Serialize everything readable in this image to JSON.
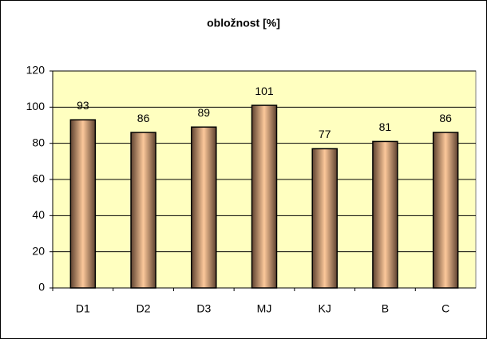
{
  "chart_data": {
    "type": "bar",
    "title": "obložnost [%]",
    "categories": [
      "D1",
      "D2",
      "D3",
      "MJ",
      "KJ",
      "B",
      "C"
    ],
    "values": [
      93,
      86,
      89,
      101,
      77,
      81,
      86
    ],
    "ylim": [
      0,
      120
    ],
    "yticks": [
      0,
      20,
      40,
      60,
      80,
      100,
      120
    ],
    "grid": true,
    "data_labels": true
  }
}
